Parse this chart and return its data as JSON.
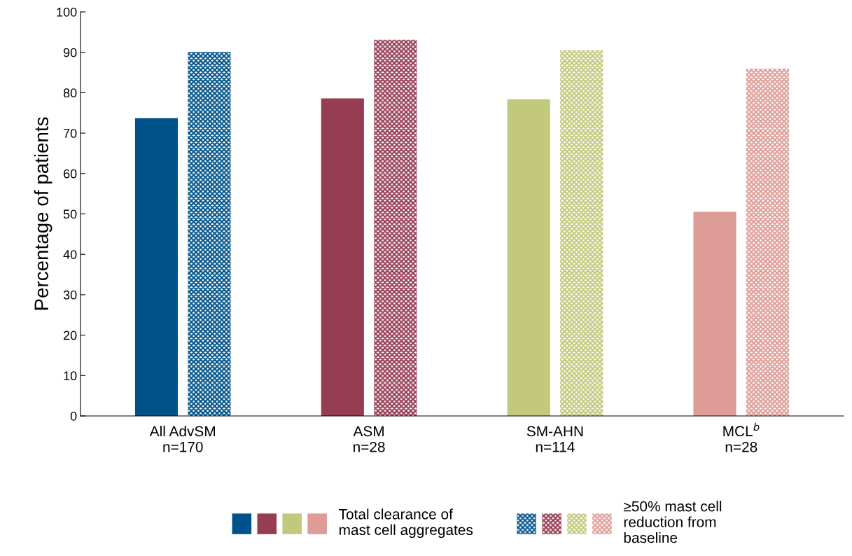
{
  "chart_data": {
    "type": "bar",
    "ylabel": "Percentage of patients",
    "categories": [
      "All AdvSM\nn=170",
      "ASM\nn=28",
      "SM-AHN\nn=114",
      "MCL$^{b}$\nn=28"
    ],
    "series": [
      {
        "name": "Total clearance of\nmast cell aggregates",
        "colors": [
          "#00538a",
          "#963d54",
          "#c2c97c",
          "#de9c97"
        ],
        "values": [
          73.7,
          78.6,
          78.4,
          50.5
        ]
      },
      {
        "name": "≥50% mast cell\nreduction from\nbaseline",
        "colors": [
          "#00538a",
          "#963d54",
          "#c2c97c",
          "#de9c97"
        ],
        "values": [
          90.1,
          93.1,
          90.5,
          85.9
        ]
      }
    ],
    "ylim": [
      0,
      100
    ],
    "yticks": [
      0,
      10,
      20,
      30,
      40,
      50,
      60,
      70,
      80,
      90,
      100
    ],
    "grid": false,
    "legend": "bottom"
  }
}
